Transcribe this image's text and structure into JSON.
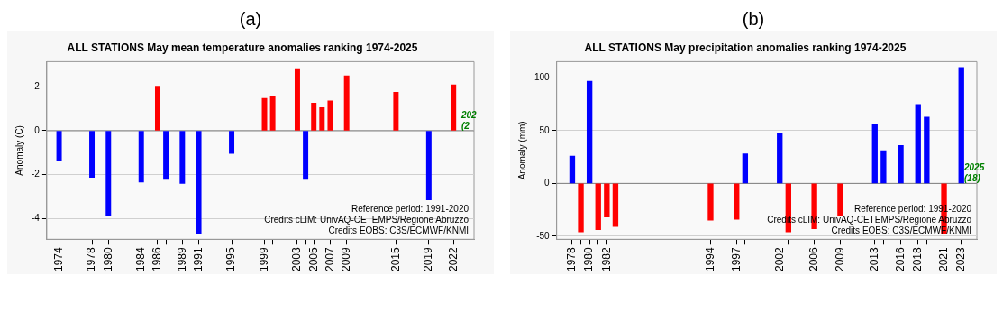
{
  "chart_data": [
    {
      "type": "bar",
      "title": "ALL STATIONS May mean temperature anomalies ranking 1974-2025",
      "ylabel": "Anomaly (C)",
      "x": [
        1974,
        1978,
        1980,
        1984,
        1986,
        1987,
        1989,
        1991,
        1995,
        1999,
        2000,
        2003,
        2004,
        2005,
        2006,
        2007,
        2009,
        2015,
        2019,
        2022
      ],
      "values": [
        -1.38,
        -2.13,
        -3.9,
        -2.34,
        2.03,
        -2.22,
        -2.4,
        -4.68,
        -1.04,
        1.48,
        1.57,
        2.83,
        -2.22,
        1.26,
        1.05,
        1.36,
        2.5,
        1.75,
        -3.16,
        2.09
      ],
      "colors": [
        "#0000ff",
        "#0000ff",
        "#0000ff",
        "#0000ff",
        "#ff0000",
        "#0000ff",
        "#0000ff",
        "#0000ff",
        "#0000ff",
        "#ff0000",
        "#ff0000",
        "#ff0000",
        "#0000ff",
        "#ff0000",
        "#ff0000",
        "#ff0000",
        "#ff0000",
        "#ff0000",
        "#0000ff",
        "#ff0000"
      ],
      "xlim": [
        1972.5,
        2024.5
      ],
      "xticks": [
        1974,
        1978,
        1980,
        1984,
        1986,
        {
          "value": 1987,
          "label": null
        },
        1989,
        1991,
        1995,
        1999,
        {
          "value": 2000,
          "label": null
        },
        2003,
        {
          "value": 2004,
          "label": null
        },
        2005,
        2007,
        2009,
        2015,
        2019,
        2022
      ],
      "ylim": [
        -4.95,
        3.15
      ],
      "yticks": [
        -4,
        -2,
        0,
        2
      ],
      "grid": "y",
      "ref_lines": [
        {
          "axis": "y",
          "value": 0,
          "color": "#808080"
        }
      ],
      "annotations": [
        "(a)",
        "Reference period: 1991-2020",
        "Credits cLIM: UnivAQ-CETEMPS/Regione Abruzzo",
        "Credits EOBS: C3S/ECMWF/KNMI",
        "202\n(2"
      ]
    },
    {
      "type": "bar",
      "title": "ALL STATIONS May precipitation anomalies ranking 1974-2025",
      "ylabel": "Anomaly (mm)",
      "x": [
        1978,
        1979,
        1980,
        1981,
        1982,
        1983,
        1994,
        1997,
        1998,
        2002,
        2003,
        2006,
        2009,
        2013,
        2014,
        2016,
        2018,
        2019,
        2021,
        2023
      ],
      "values": [
        26,
        -46,
        97,
        -44,
        -32,
        -41,
        -35,
        -34,
        28,
        47,
        -46,
        -43,
        -31,
        56,
        31,
        36,
        75,
        63,
        -48,
        110
      ],
      "colors": [
        "#0000ff",
        "#ff0000",
        "#0000ff",
        "#ff0000",
        "#ff0000",
        "#ff0000",
        "#ff0000",
        "#ff0000",
        "#0000ff",
        "#0000ff",
        "#ff0000",
        "#ff0000",
        "#ff0000",
        "#0000ff",
        "#0000ff",
        "#0000ff",
        "#0000ff",
        "#0000ff",
        "#ff0000",
        "#0000ff"
      ],
      "xlim": [
        1976.2,
        2024.8
      ],
      "xticks": [
        1978,
        {
          "value": 1979,
          "label": null
        },
        1980,
        {
          "value": 1981,
          "label": null
        },
        1982,
        {
          "value": 1983,
          "label": null
        },
        1994,
        1997,
        {
          "value": 1998,
          "label": null
        },
        2002,
        {
          "value": 2003,
          "label": null
        },
        2006,
        2009,
        2013,
        {
          "value": 2014,
          "label": null
        },
        2016,
        2018,
        {
          "value": 2019,
          "label": null
        },
        2021,
        2023
      ],
      "ylim": [
        -53,
        115.5
      ],
      "yticks": [
        -50,
        0,
        50,
        100
      ],
      "grid": "y",
      "ref_lines": [
        {
          "axis": "y",
          "value": 0,
          "color": "#808080"
        }
      ],
      "annotations": [
        "(b)",
        "Reference period: 1991-2020",
        "Credits cLIM: UnivAQ-CETEMPS/Regione Abruzzo",
        "Credits EOBS: C3S/ECMWF/KNMI",
        "2025\n(18)"
      ]
    }
  ]
}
